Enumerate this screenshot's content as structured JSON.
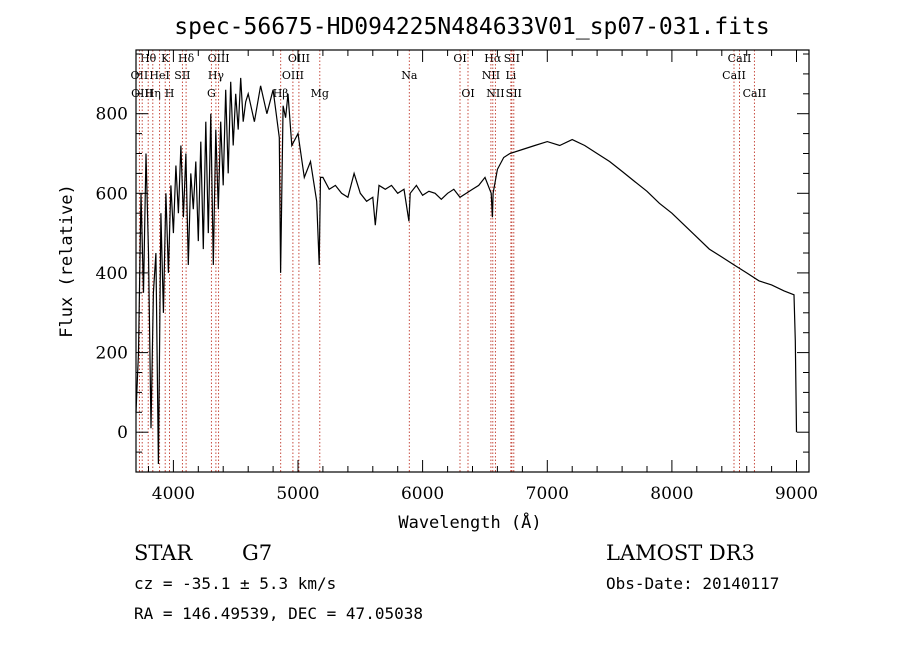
{
  "chart_data": {
    "type": "line",
    "title": "spec-56675-HD094225N484633V01_sp07-031.fits",
    "xlabel": "Wavelength (Å)",
    "ylabel": "Flux (relative)",
    "xlim": [
      3700,
      9100
    ],
    "ylim": [
      -100,
      960
    ],
    "xticks": [
      4000,
      5000,
      6000,
      7000,
      8000,
      9000
    ],
    "yticks": [
      0,
      200,
      400,
      600,
      800
    ],
    "series": [
      {
        "name": "flux",
        "x": [
          3700,
          3720,
          3740,
          3760,
          3780,
          3800,
          3820,
          3840,
          3860,
          3880,
          3900,
          3920,
          3940,
          3960,
          3980,
          4000,
          4020,
          4040,
          4060,
          4080,
          4100,
          4120,
          4140,
          4160,
          4180,
          4200,
          4220,
          4240,
          4260,
          4280,
          4300,
          4320,
          4340,
          4360,
          4380,
          4400,
          4420,
          4440,
          4460,
          4480,
          4500,
          4520,
          4540,
          4560,
          4580,
          4600,
          4650,
          4700,
          4750,
          4800,
          4850,
          4860,
          4880,
          4900,
          4920,
          4950,
          5000,
          5050,
          5100,
          5150,
          5170,
          5180,
          5200,
          5250,
          5300,
          5350,
          5400,
          5450,
          5500,
          5550,
          5600,
          5620,
          5650,
          5700,
          5750,
          5800,
          5850,
          5890,
          5900,
          5950,
          6000,
          6050,
          6100,
          6150,
          6200,
          6250,
          6300,
          6350,
          6400,
          6450,
          6500,
          6550,
          6560,
          6565,
          6600,
          6650,
          6700,
          6800,
          6900,
          7000,
          7100,
          7200,
          7300,
          7400,
          7500,
          7600,
          7700,
          7800,
          7900,
          8000,
          8100,
          8200,
          8300,
          8400,
          8500,
          8600,
          8700,
          8800,
          8900,
          8980,
          8990,
          9000
        ],
        "y": [
          50,
          200,
          600,
          350,
          700,
          450,
          10,
          350,
          450,
          -80,
          550,
          300,
          600,
          400,
          620,
          500,
          670,
          550,
          720,
          540,
          700,
          420,
          650,
          560,
          680,
          480,
          730,
          460,
          780,
          500,
          800,
          420,
          760,
          560,
          780,
          620,
          860,
          650,
          880,
          720,
          850,
          760,
          890,
          780,
          830,
          850,
          780,
          870,
          800,
          860,
          740,
          400,
          820,
          790,
          850,
          720,
          750,
          640,
          680,
          580,
          420,
          640,
          640,
          610,
          620,
          600,
          590,
          650,
          600,
          580,
          590,
          520,
          620,
          610,
          620,
          600,
          610,
          530,
          600,
          620,
          595,
          605,
          600,
          585,
          600,
          610,
          590,
          600,
          610,
          620,
          640,
          600,
          540,
          600,
          660,
          690,
          700,
          710,
          720,
          730,
          720,
          735,
          720,
          700,
          680,
          655,
          630,
          605,
          575,
          550,
          520,
          490,
          460,
          440,
          420,
          400,
          380,
          370,
          355,
          345,
          230,
          0
        ]
      }
    ],
    "line_markers": [
      {
        "label": "Hθ",
        "x": 3798,
        "row": 1
      },
      {
        "label": "OII",
        "x": 3727,
        "row": 2
      },
      {
        "label": "OIII",
        "x": 3750,
        "row": 3
      },
      {
        "label": "K",
        "x": 3934,
        "row": 1
      },
      {
        "label": "HeI",
        "x": 3889,
        "row": 2
      },
      {
        "label": "Hη",
        "x": 3835,
        "row": 3
      },
      {
        "label": "Hδ",
        "x": 4102,
        "row": 1
      },
      {
        "label": "SII",
        "x": 4072,
        "row": 2
      },
      {
        "label": "H",
        "x": 3969,
        "row": 3
      },
      {
        "label": "OIII",
        "x": 4363,
        "row": 1
      },
      {
        "label": "Hγ",
        "x": 4341,
        "row": 2
      },
      {
        "label": "G",
        "x": 4305,
        "row": 3
      },
      {
        "label": "OIII",
        "x": 5007,
        "row": 1
      },
      {
        "label": "OIII",
        "x": 4959,
        "row": 2
      },
      {
        "label": "Hβ",
        "x": 4861,
        "row": 3
      },
      {
        "label": "Mg",
        "x": 5175,
        "row": 3
      },
      {
        "label": "Na",
        "x": 5893,
        "row": 2
      },
      {
        "label": "OI",
        "x": 6300,
        "row": 1
      },
      {
        "label": "OI",
        "x": 6364,
        "row": 3
      },
      {
        "label": "Hα",
        "x": 6563,
        "row": 1
      },
      {
        "label": "SII",
        "x": 6716,
        "row": 1
      },
      {
        "label": "NII",
        "x": 6548,
        "row": 2
      },
      {
        "label": "Li",
        "x": 6708,
        "row": 2
      },
      {
        "label": "NII",
        "x": 6584,
        "row": 3
      },
      {
        "label": "SII",
        "x": 6731,
        "row": 3
      },
      {
        "label": "CaII",
        "x": 8542,
        "row": 1
      },
      {
        "label": "CaII",
        "x": 8498,
        "row": 2
      },
      {
        "label": "CaII",
        "x": 8662,
        "row": 3
      }
    ]
  },
  "info": {
    "object_class": "STAR",
    "subclass": "G7",
    "survey": "LAMOST DR3",
    "redshift": "cz = -35.1 ± 5.3 km/s",
    "obs_date": "Obs-Date: 20140117",
    "coords": "RA = 146.49539, DEC =  47.05038"
  }
}
